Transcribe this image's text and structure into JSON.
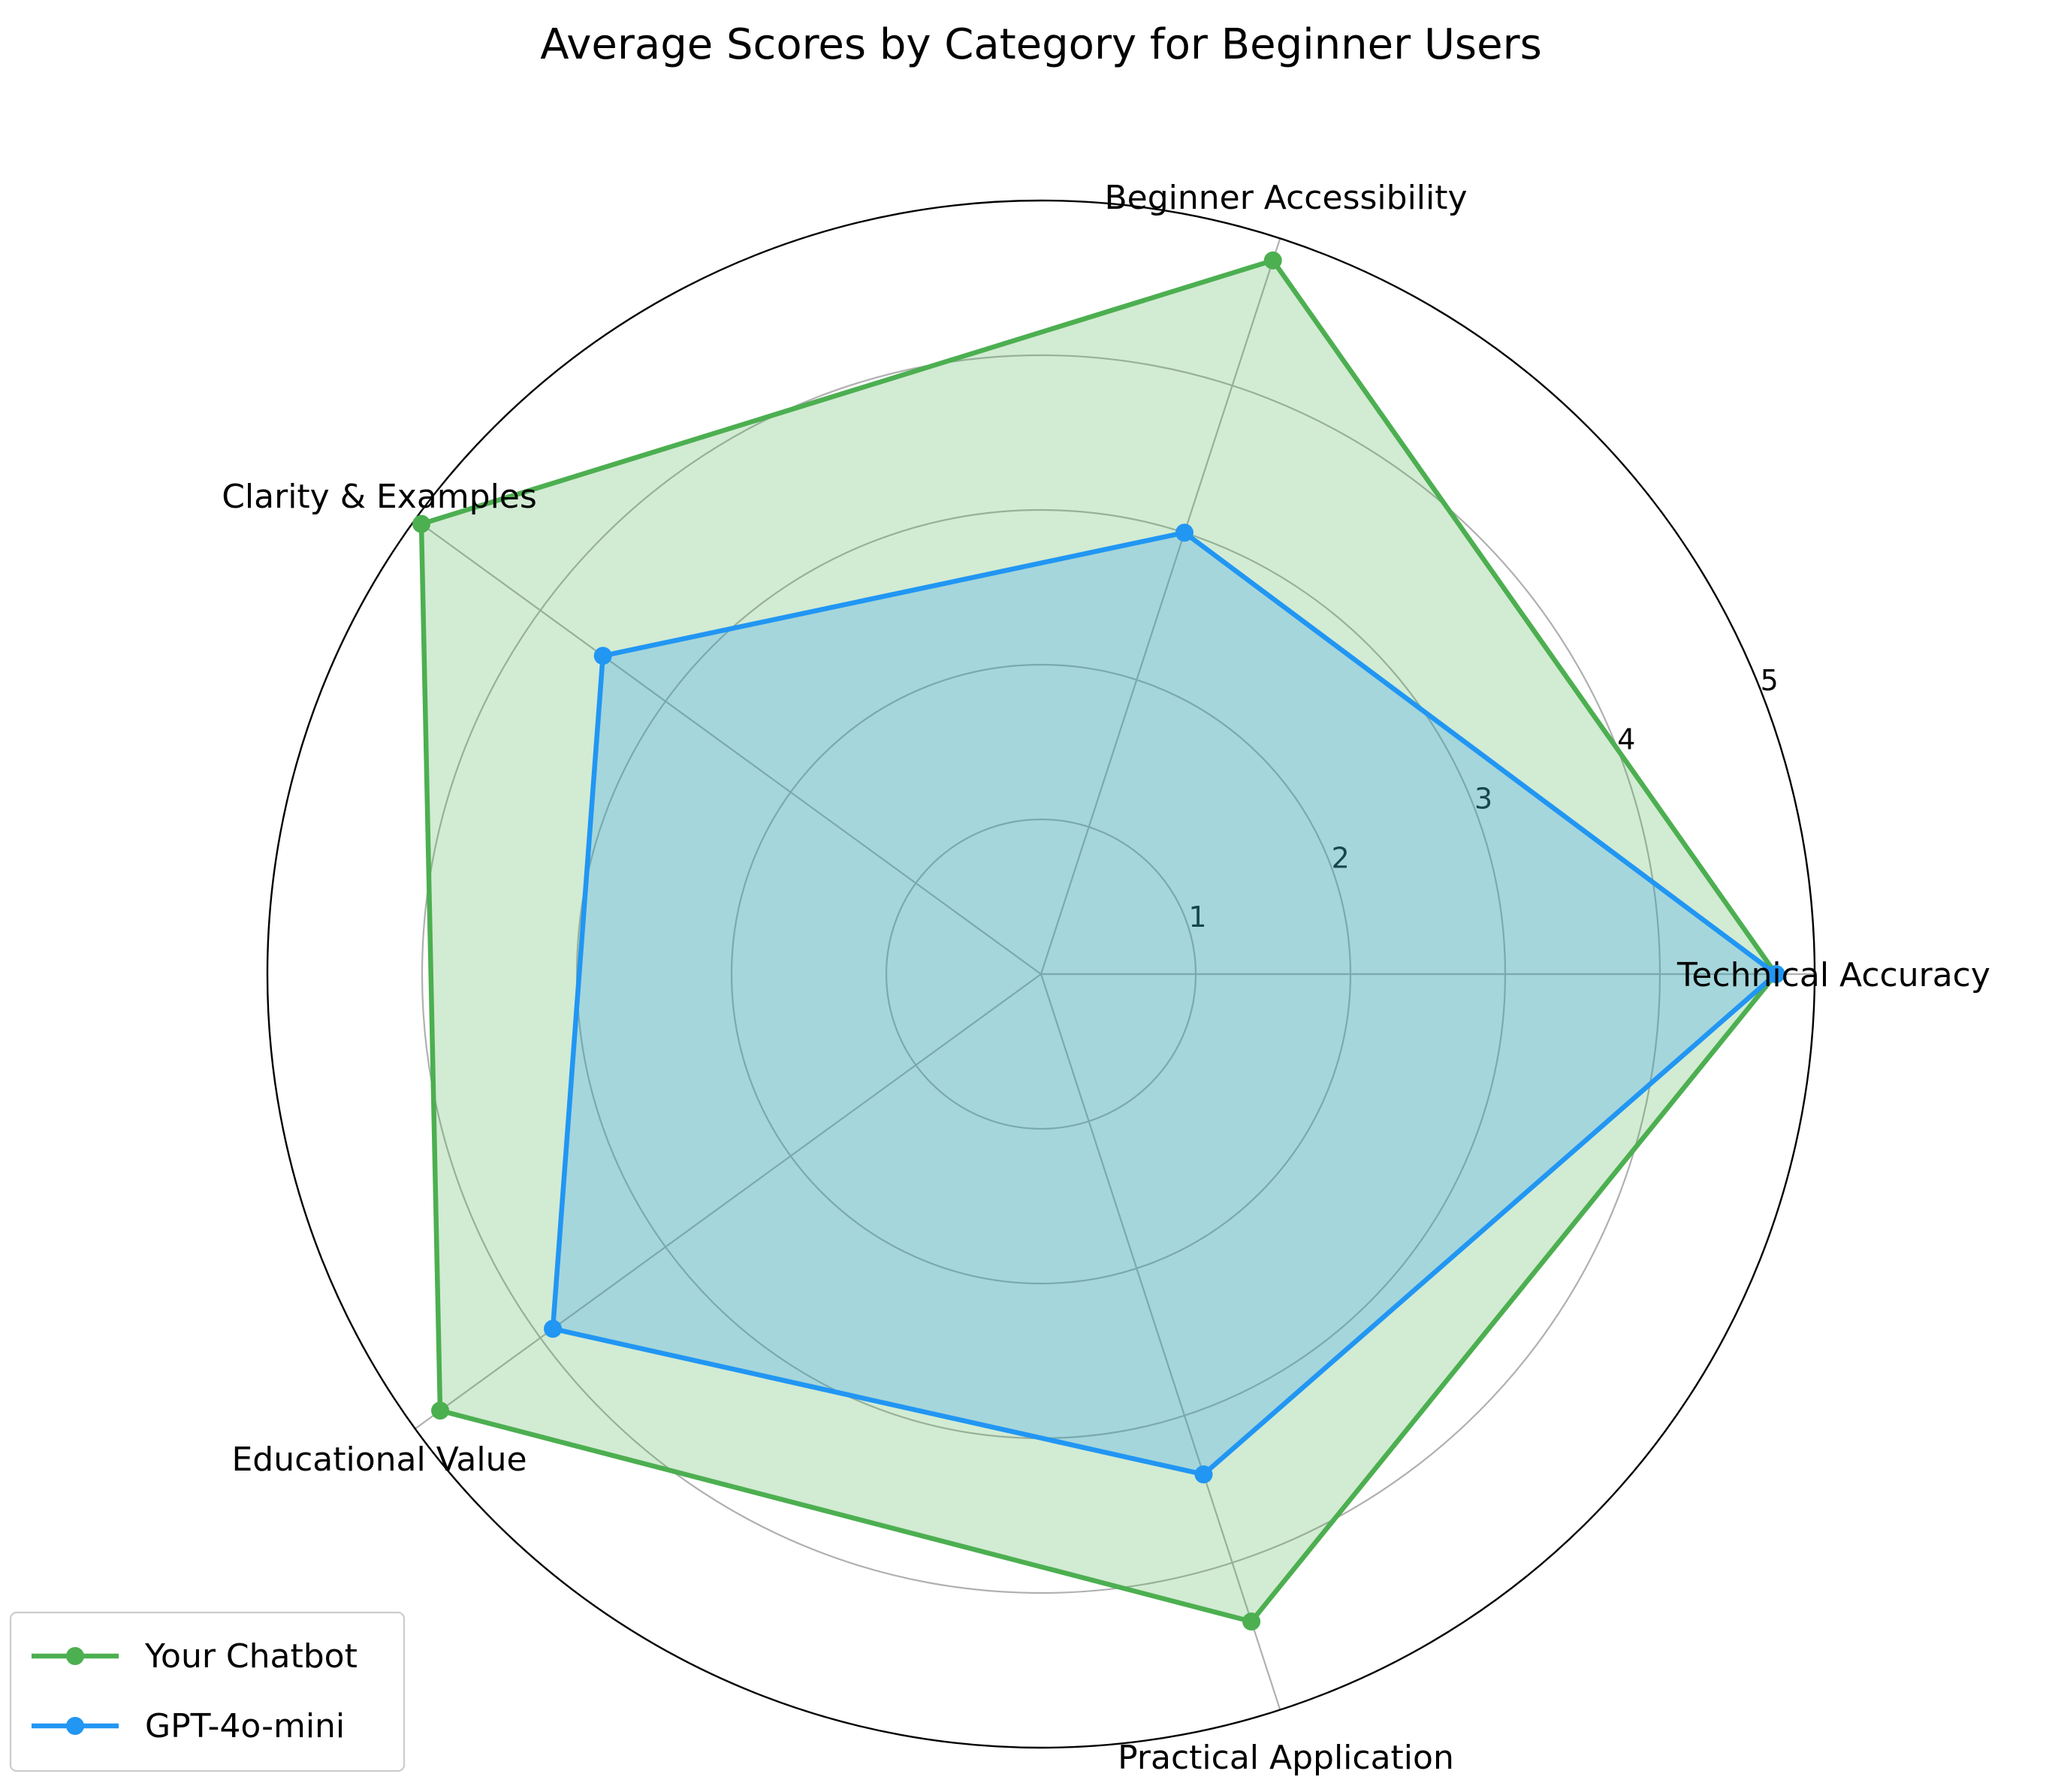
{
  "chart_data": {
    "type": "radar",
    "title": "Average Scores by Category for Beginner Users",
    "categories": [
      "Technical Accuracy",
      "Beginner Accessibility",
      "Clarity & Examples",
      "Educational Value",
      "Practical Application"
    ],
    "radial_ticks": [
      1,
      2,
      3,
      4,
      5
    ],
    "radial_range": [
      0,
      5
    ],
    "grid": true,
    "legend_position": "bottom-left",
    "series": [
      {
        "name": "Your Chatbot",
        "values": [
          4.75,
          4.85,
          4.95,
          4.8,
          4.4
        ],
        "color": "#4caf50",
        "fill_color": "#4caf50"
      },
      {
        "name": "GPT-4o-mini",
        "values": [
          4.75,
          3.0,
          3.5,
          3.9,
          3.4
        ],
        "color": "#2196f3",
        "fill_color": "#2196f3"
      }
    ]
  }
}
